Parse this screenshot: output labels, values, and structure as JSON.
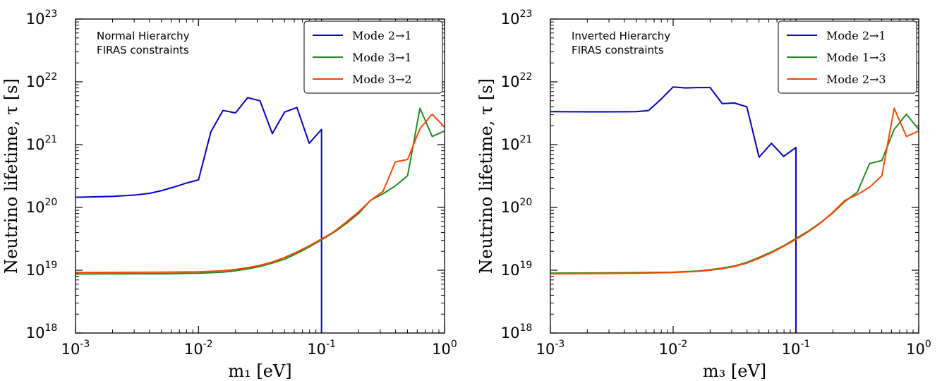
{
  "chart_data": [
    {
      "type": "line",
      "xscale": "log",
      "yscale": "log",
      "xlim": [
        0.001,
        1
      ],
      "ylim": [
        1e+18,
        1e+23
      ],
      "xlabel": "m₁ [eV]",
      "ylabel": "Neutrino lifetime, τ [s]",
      "x_tick_labels": [
        {
          "base": "10",
          "exp": "-3"
        },
        {
          "base": "10",
          "exp": "-2"
        },
        {
          "base": "10",
          "exp": "-1"
        },
        {
          "base": "10",
          "exp": "0"
        }
      ],
      "y_tick_labels": [
        {
          "base": "10",
          "exp": "18"
        },
        {
          "base": "10",
          "exp": "19"
        },
        {
          "base": "10",
          "exp": "20"
        },
        {
          "base": "10",
          "exp": "21"
        },
        {
          "base": "10",
          "exp": "22"
        },
        {
          "base": "10",
          "exp": "23"
        }
      ],
      "annotation": [
        "Normal Hierarchy",
        "FIRAS constraints"
      ],
      "legend_position": "top-right",
      "series": [
        {
          "name": "Mode 2→1",
          "color": "#0000cc",
          "points": [
            [
              0.001,
              1.45e+20
            ],
            [
              0.002,
              1.5e+20
            ],
            [
              0.003,
              1.57e+20
            ],
            [
              0.004,
              1.68e+20
            ],
            [
              0.005,
              1.85e+20
            ],
            [
              0.006,
              2.05e+20
            ],
            [
              0.007,
              2.25e+20
            ],
            [
              0.008,
              2.45e+20
            ],
            [
              0.01,
              2.75e+20
            ],
            [
              0.0126,
              1.6e+21
            ],
            [
              0.0158,
              3.5e+21
            ],
            [
              0.02,
              3.2e+21
            ],
            [
              0.0251,
              5.6e+21
            ],
            [
              0.0316,
              5e+21
            ],
            [
              0.0398,
              1.5e+21
            ],
            [
              0.0501,
              3.3e+21
            ],
            [
              0.0631,
              3.9e+21
            ],
            [
              0.0794,
              1.05e+21
            ],
            [
              0.1,
              1.75e+21
            ],
            [
              0.1,
              1e+18
            ]
          ]
        },
        {
          "name": "Mode 3→1",
          "color": "#228b22",
          "points": [
            [
              0.001,
              8.7e+18
            ],
            [
              0.002,
              8.75e+18
            ],
            [
              0.005,
              8.8e+18
            ],
            [
              0.01,
              8.95e+18
            ],
            [
              0.0158,
              9.3e+18
            ],
            [
              0.02,
              9.8e+18
            ],
            [
              0.0251,
              1.05e+19
            ],
            [
              0.0316,
              1.15e+19
            ],
            [
              0.0398,
              1.3e+19
            ],
            [
              0.0501,
              1.5e+19
            ],
            [
              0.0631,
              1.85e+19
            ],
            [
              0.0794,
              2.35e+19
            ],
            [
              0.1,
              3.05e+19
            ],
            [
              0.126,
              4e+19
            ],
            [
              0.158,
              5.5e+19
            ],
            [
              0.2,
              8e+19
            ],
            [
              0.251,
              1.3e+20
            ],
            [
              0.316,
              1.65e+20
            ],
            [
              0.398,
              2.2e+20
            ],
            [
              0.501,
              3.2e+20
            ],
            [
              0.631,
              3.8e+21
            ],
            [
              0.794,
              1.35e+21
            ],
            [
              1.0,
              1.65e+21
            ]
          ]
        },
        {
          "name": "Mode 3→2",
          "color": "#ff4500",
          "points": [
            [
              0.001,
              9.2e+18
            ],
            [
              0.002,
              9.25e+18
            ],
            [
              0.005,
              9.3e+18
            ],
            [
              0.01,
              9.45e+18
            ],
            [
              0.0158,
              9.8e+18
            ],
            [
              0.02,
              1.03e+19
            ],
            [
              0.0251,
              1.1e+19
            ],
            [
              0.0316,
              1.2e+19
            ],
            [
              0.0398,
              1.35e+19
            ],
            [
              0.0501,
              1.6e+19
            ],
            [
              0.0631,
              1.95e+19
            ],
            [
              0.0794,
              2.45e+19
            ],
            [
              0.1,
              3.15e+19
            ],
            [
              0.126,
              4.1e+19
            ],
            [
              0.158,
              5.8e+19
            ],
            [
              0.2,
              8.5e+19
            ],
            [
              0.251,
              1.3e+20
            ],
            [
              0.316,
              1.8e+20
            ],
            [
              0.398,
              5.3e+20
            ],
            [
              0.501,
              5.8e+20
            ],
            [
              0.631,
              1.8e+21
            ],
            [
              0.794,
              3.05e+21
            ],
            [
              1.0,
              1.9e+21
            ]
          ]
        }
      ]
    },
    {
      "type": "line",
      "xscale": "log",
      "yscale": "log",
      "xlim": [
        0.001,
        1
      ],
      "ylim": [
        1e+18,
        1e+23
      ],
      "xlabel": "m₃ [eV]",
      "ylabel": "Neutrino lifetime, τ [s]",
      "x_tick_labels": [
        {
          "base": "10",
          "exp": "-3"
        },
        {
          "base": "10",
          "exp": "-2"
        },
        {
          "base": "10",
          "exp": "-1"
        },
        {
          "base": "10",
          "exp": "0"
        }
      ],
      "y_tick_labels": [
        {
          "base": "10",
          "exp": "18"
        },
        {
          "base": "10",
          "exp": "19"
        },
        {
          "base": "10",
          "exp": "20"
        },
        {
          "base": "10",
          "exp": "21"
        },
        {
          "base": "10",
          "exp": "22"
        },
        {
          "base": "10",
          "exp": "23"
        }
      ],
      "annotation": [
        "Inverted Hierarchy",
        "FIRAS constraints"
      ],
      "legend_position": "top-right",
      "series": [
        {
          "name": "Mode 2→1",
          "color": "#0000cc",
          "points": [
            [
              0.001,
              3.35e+21
            ],
            [
              0.002,
              3.33e+21
            ],
            [
              0.003,
              3.33e+21
            ],
            [
              0.005,
              3.35e+21
            ],
            [
              0.0063,
              3.5e+21
            ],
            [
              0.0079,
              5.2e+21
            ],
            [
              0.01,
              8.3e+21
            ],
            [
              0.0126,
              8e+21
            ],
            [
              0.0158,
              8.1e+21
            ],
            [
              0.02,
              8.1e+21
            ],
            [
              0.0251,
              4.5e+21
            ],
            [
              0.0316,
              4.6e+21
            ],
            [
              0.0398,
              4e+21
            ],
            [
              0.0501,
              6.3e+20
            ],
            [
              0.0631,
              1.05e+21
            ],
            [
              0.0794,
              6.5e+20
            ],
            [
              0.1,
              9e+20
            ],
            [
              0.1,
              1e+18
            ]
          ]
        },
        {
          "name": "Mode 1→3",
          "color": "#228b22",
          "points": [
            [
              0.001,
              9e+18
            ],
            [
              0.002,
              9.05e+18
            ],
            [
              0.005,
              9.15e+18
            ],
            [
              0.01,
              9.3e+18
            ],
            [
              0.0158,
              9.7e+18
            ],
            [
              0.02,
              1.02e+19
            ],
            [
              0.0251,
              1.08e+19
            ],
            [
              0.0316,
              1.17e+19
            ],
            [
              0.0398,
              1.33e+19
            ],
            [
              0.0501,
              1.6e+19
            ],
            [
              0.0631,
              1.95e+19
            ],
            [
              0.0794,
              2.45e+19
            ],
            [
              0.1,
              3.2e+19
            ],
            [
              0.126,
              4.2e+19
            ],
            [
              0.158,
              5.7e+19
            ],
            [
              0.2,
              8.2e+19
            ],
            [
              0.251,
              1.25e+20
            ],
            [
              0.316,
              1.75e+20
            ],
            [
              0.398,
              5e+20
            ],
            [
              0.501,
              5.6e+20
            ],
            [
              0.631,
              1.75e+21
            ],
            [
              0.794,
              3.05e+21
            ],
            [
              1.0,
              1.75e+21
            ]
          ]
        },
        {
          "name": "Mode 2→3",
          "color": "#ff4500",
          "points": [
            [
              0.001,
              8.8e+18
            ],
            [
              0.002,
              8.85e+18
            ],
            [
              0.005,
              8.95e+18
            ],
            [
              0.01,
              9.2e+18
            ],
            [
              0.0158,
              9.6e+18
            ],
            [
              0.02,
              1e+19
            ],
            [
              0.0251,
              1.06e+19
            ],
            [
              0.0316,
              1.15e+19
            ],
            [
              0.0398,
              1.3e+19
            ],
            [
              0.0501,
              1.55e+19
            ],
            [
              0.0631,
              1.9e+19
            ],
            [
              0.0794,
              2.4e+19
            ],
            [
              0.1,
              3.1e+19
            ],
            [
              0.126,
              4.1e+19
            ],
            [
              0.158,
              5.6e+19
            ],
            [
              0.2,
              8.4e+19
            ],
            [
              0.251,
              1.3e+20
            ],
            [
              0.316,
              1.6e+20
            ],
            [
              0.398,
              2.1e+20
            ],
            [
              0.501,
              3.2e+20
            ],
            [
              0.631,
              3.8e+21
            ],
            [
              0.794,
              1.35e+21
            ],
            [
              1.0,
              1.65e+21
            ]
          ]
        }
      ]
    }
  ]
}
